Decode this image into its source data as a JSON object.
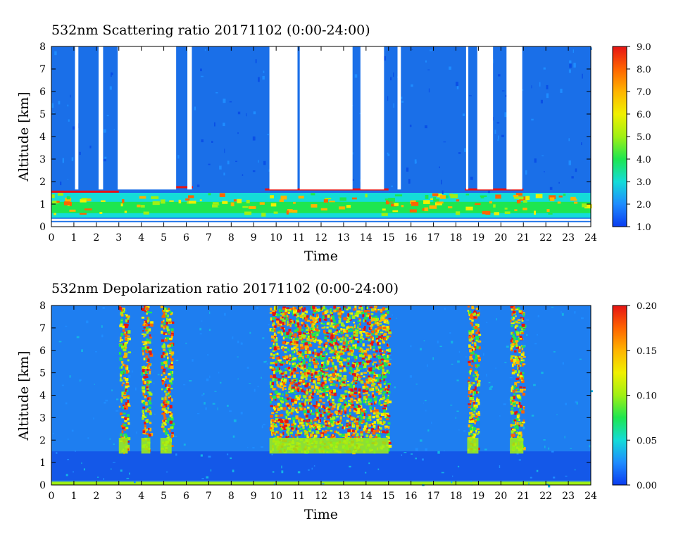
{
  "chart_data": [
    {
      "type": "heatmap",
      "title": "532nm Scattering ratio  20171102 (0:00-24:00)",
      "xlabel": "Time",
      "ylabel": "Altitude [km]",
      "xlim": [
        0,
        24
      ],
      "ylim": [
        0,
        8
      ],
      "x_ticks": [
        "0",
        "1",
        "2",
        "3",
        "4",
        "5",
        "6",
        "7",
        "8",
        "9",
        "10",
        "11",
        "12",
        "13",
        "14",
        "15",
        "16",
        "17",
        "18",
        "19",
        "20",
        "21",
        "22",
        "23",
        "24"
      ],
      "y_ticks": [
        "0",
        "1",
        "2",
        "3",
        "4",
        "5",
        "6",
        "7",
        "8"
      ],
      "colorbar": {
        "range": [
          1.0,
          9.0
        ],
        "ticks": [
          "1.0",
          "2.0",
          "3.0",
          "4.0",
          "5.0",
          "6.0",
          "7.0",
          "8.0",
          "9.0"
        ],
        "colors": [
          "#0a3cf0",
          "#1e8cff",
          "#14dcd8",
          "#1ee650",
          "#a0f014",
          "#f0f000",
          "#ffb400",
          "#ff6400",
          "#e61414"
        ]
      },
      "features": {
        "cloud_base_km": [
          {
            "t_start": 0.0,
            "t_end": 3.0,
            "base": 1.5
          },
          {
            "t_start": 3.0,
            "t_end": 6.3,
            "base": 1.7
          },
          {
            "t_start": 9.5,
            "t_end": 15.0,
            "base": 1.6
          },
          {
            "t_start": 18.4,
            "t_end": 21.0,
            "base": 1.6
          }
        ],
        "no_data_gaps_hours": [
          [
            1.05,
            1.2
          ],
          [
            2.1,
            2.3
          ],
          [
            2.95,
            5.55
          ],
          [
            6.05,
            6.25
          ],
          [
            9.7,
            10.95
          ],
          [
            11.05,
            13.4
          ],
          [
            13.75,
            14.8
          ],
          [
            15.4,
            15.55
          ],
          [
            18.45,
            18.55
          ],
          [
            18.95,
            19.65
          ],
          [
            20.25,
            20.95
          ]
        ]
      }
    },
    {
      "type": "heatmap",
      "title": "532nm Depolarization ratio  20171102 (0:00-24:00)",
      "xlabel": "Time",
      "ylabel": "Altitude [km]",
      "xlim": [
        0,
        24
      ],
      "ylim": [
        0,
        8
      ],
      "x_ticks": [
        "0",
        "1",
        "2",
        "3",
        "4",
        "5",
        "6",
        "7",
        "8",
        "9",
        "10",
        "11",
        "12",
        "13",
        "14",
        "15",
        "16",
        "17",
        "18",
        "19",
        "20",
        "21",
        "22",
        "23",
        "24"
      ],
      "y_ticks": [
        "0",
        "1",
        "2",
        "3",
        "4",
        "5",
        "6",
        "7",
        "8"
      ],
      "colorbar": {
        "range": [
          0.0,
          0.2
        ],
        "ticks": [
          "0.00",
          "0.05",
          "0.10",
          "0.15",
          "0.20"
        ],
        "colors": [
          "#0a3cf0",
          "#1e8cff",
          "#14dcd8",
          "#1ee650",
          "#a0f014",
          "#f0f000",
          "#ffb400",
          "#ff6400",
          "#e61414"
        ]
      },
      "features": {
        "high_depol_columns_hours": [
          [
            3.0,
            3.4
          ],
          [
            4.0,
            4.4
          ],
          [
            4.85,
            5.35
          ],
          [
            9.7,
            15.0
          ],
          [
            18.5,
            19.0
          ],
          [
            20.4,
            21.0
          ]
        ]
      }
    }
  ]
}
